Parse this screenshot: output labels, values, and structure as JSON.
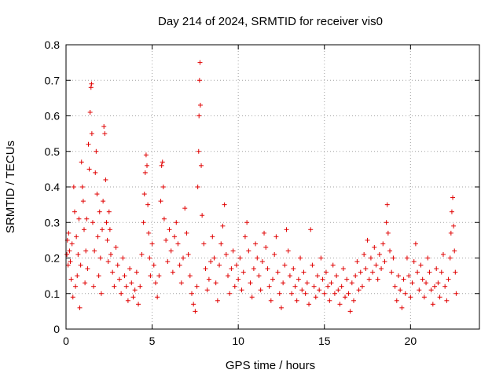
{
  "chart_data": {
    "type": "scatter",
    "title": "Day 214 of 2024, SRMTID for receiver vis0",
    "xlabel": "GPS time / hours",
    "ylabel": "SRMTID / TECUs",
    "xlim": [
      0,
      24
    ],
    "ylim": [
      0,
      0.8
    ],
    "xticks": [
      0,
      5,
      10,
      15,
      20
    ],
    "yticks": [
      0,
      0.1,
      0.2,
      0.3,
      0.4,
      0.5,
      0.6,
      0.7,
      0.8
    ],
    "grid": true,
    "marker": "+",
    "color": "#e00000",
    "series": [
      {
        "name": "SRMTID",
        "points": [
          [
            0.05,
            0.21
          ],
          [
            0.08,
            0.25
          ],
          [
            0.12,
            0.18
          ],
          [
            0.15,
            0.27
          ],
          [
            0.2,
            0.22
          ],
          [
            0.25,
            0.19
          ],
          [
            0.3,
            0.14
          ],
          [
            0.35,
            0.24
          ],
          [
            0.4,
            0.09
          ],
          [
            0.45,
            0.4
          ],
          [
            0.5,
            0.33
          ],
          [
            0.55,
            0.12
          ],
          [
            0.6,
            0.26
          ],
          [
            0.65,
            0.15
          ],
          [
            0.7,
            0.21
          ],
          [
            0.75,
            0.31
          ],
          [
            0.8,
            0.06
          ],
          [
            0.85,
            0.18
          ],
          [
            0.9,
            0.47
          ],
          [
            0.95,
            0.4
          ],
          [
            1.0,
            0.36
          ],
          [
            1.05,
            0.28
          ],
          [
            1.1,
            0.13
          ],
          [
            1.15,
            0.22
          ],
          [
            1.2,
            0.31
          ],
          [
            1.25,
            0.17
          ],
          [
            1.3,
            0.52
          ],
          [
            1.35,
            0.45
          ],
          [
            1.4,
            0.61
          ],
          [
            1.45,
            0.68
          ],
          [
            1.48,
            0.69
          ],
          [
            1.5,
            0.55
          ],
          [
            1.55,
            0.3
          ],
          [
            1.6,
            0.12
          ],
          [
            1.65,
            0.22
          ],
          [
            1.7,
            0.44
          ],
          [
            1.75,
            0.5
          ],
          [
            1.8,
            0.38
          ],
          [
            1.85,
            0.26
          ],
          [
            1.9,
            0.15
          ],
          [
            1.95,
            0.33
          ],
          [
            2.0,
            0.2
          ],
          [
            2.05,
            0.1
          ],
          [
            2.1,
            0.28
          ],
          [
            2.15,
            0.36
          ],
          [
            2.2,
            0.57
          ],
          [
            2.25,
            0.55
          ],
          [
            2.3,
            0.42
          ],
          [
            2.35,
            0.3
          ],
          [
            2.4,
            0.25
          ],
          [
            2.45,
            0.19
          ],
          [
            2.5,
            0.33
          ],
          [
            2.55,
            0.28
          ],
          [
            2.6,
            0.21
          ],
          [
            2.7,
            0.16
          ],
          [
            2.8,
            0.12
          ],
          [
            2.9,
            0.23
          ],
          [
            3.0,
            0.18
          ],
          [
            3.1,
            0.14
          ],
          [
            3.2,
            0.1
          ],
          [
            3.3,
            0.2
          ],
          [
            3.4,
            0.15
          ],
          [
            3.5,
            0.12
          ],
          [
            3.6,
            0.08
          ],
          [
            3.7,
            0.17
          ],
          [
            3.8,
            0.13
          ],
          [
            3.9,
            0.09
          ],
          [
            4.0,
            0.11
          ],
          [
            4.1,
            0.16
          ],
          [
            4.2,
            0.07
          ],
          [
            4.3,
            0.12
          ],
          [
            4.4,
            0.21
          ],
          [
            4.5,
            0.3
          ],
          [
            4.55,
            0.38
          ],
          [
            4.6,
            0.44
          ],
          [
            4.65,
            0.49
          ],
          [
            4.7,
            0.46
          ],
          [
            4.75,
            0.35
          ],
          [
            4.8,
            0.27
          ],
          [
            4.85,
            0.2
          ],
          [
            4.9,
            0.15
          ],
          [
            5.0,
            0.24
          ],
          [
            5.1,
            0.18
          ],
          [
            5.2,
            0.13
          ],
          [
            5.3,
            0.09
          ],
          [
            5.4,
            0.15
          ],
          [
            5.5,
            0.36
          ],
          [
            5.55,
            0.46
          ],
          [
            5.6,
            0.47
          ],
          [
            5.65,
            0.4
          ],
          [
            5.7,
            0.31
          ],
          [
            5.8,
            0.25
          ],
          [
            5.9,
            0.19
          ],
          [
            6.0,
            0.28
          ],
          [
            6.1,
            0.22
          ],
          [
            6.2,
            0.16
          ],
          [
            6.3,
            0.26
          ],
          [
            6.4,
            0.3
          ],
          [
            6.5,
            0.24
          ],
          [
            6.6,
            0.18
          ],
          [
            6.7,
            0.13
          ],
          [
            6.8,
            0.2
          ],
          [
            6.9,
            0.34
          ],
          [
            7.0,
            0.27
          ],
          [
            7.1,
            0.21
          ],
          [
            7.2,
            0.15
          ],
          [
            7.3,
            0.1
          ],
          [
            7.4,
            0.07
          ],
          [
            7.5,
            0.05
          ],
          [
            7.6,
            0.12
          ],
          [
            7.65,
            0.4
          ],
          [
            7.7,
            0.5
          ],
          [
            7.72,
            0.6
          ],
          [
            7.75,
            0.7
          ],
          [
            7.78,
            0.75
          ],
          [
            7.8,
            0.63
          ],
          [
            7.85,
            0.46
          ],
          [
            7.9,
            0.32
          ],
          [
            8.0,
            0.24
          ],
          [
            8.1,
            0.17
          ],
          [
            8.2,
            0.11
          ],
          [
            8.3,
            0.14
          ],
          [
            8.4,
            0.19
          ],
          [
            8.5,
            0.26
          ],
          [
            8.6,
            0.2
          ],
          [
            8.7,
            0.13
          ],
          [
            8.8,
            0.08
          ],
          [
            8.9,
            0.18
          ],
          [
            9.0,
            0.24
          ],
          [
            9.1,
            0.29
          ],
          [
            9.2,
            0.35
          ],
          [
            9.3,
            0.21
          ],
          [
            9.4,
            0.15
          ],
          [
            9.5,
            0.1
          ],
          [
            9.6,
            0.17
          ],
          [
            9.7,
            0.22
          ],
          [
            9.8,
            0.12
          ],
          [
            9.9,
            0.18
          ],
          [
            10.0,
            0.14
          ],
          [
            10.1,
            0.2
          ],
          [
            10.2,
            0.11
          ],
          [
            10.3,
            0.16
          ],
          [
            10.4,
            0.26
          ],
          [
            10.5,
            0.3
          ],
          [
            10.6,
            0.22
          ],
          [
            10.7,
            0.13
          ],
          [
            10.8,
            0.09
          ],
          [
            10.9,
            0.17
          ],
          [
            11.0,
            0.24
          ],
          [
            11.1,
            0.2
          ],
          [
            11.2,
            0.15
          ],
          [
            11.3,
            0.11
          ],
          [
            11.4,
            0.19
          ],
          [
            11.5,
            0.27
          ],
          [
            11.6,
            0.23
          ],
          [
            11.7,
            0.17
          ],
          [
            11.8,
            0.12
          ],
          [
            11.9,
            0.08
          ],
          [
            12.0,
            0.14
          ],
          [
            12.1,
            0.21
          ],
          [
            12.2,
            0.26
          ],
          [
            12.3,
            0.16
          ],
          [
            12.4,
            0.1
          ],
          [
            12.5,
            0.06
          ],
          [
            12.6,
            0.13
          ],
          [
            12.7,
            0.18
          ],
          [
            12.8,
            0.28
          ],
          [
            12.9,
            0.22
          ],
          [
            13.0,
            0.15
          ],
          [
            13.1,
            0.1
          ],
          [
            13.2,
            0.17
          ],
          [
            13.3,
            0.12
          ],
          [
            13.4,
            0.08
          ],
          [
            13.5,
            0.14
          ],
          [
            13.6,
            0.2
          ],
          [
            13.7,
            0.11
          ],
          [
            13.8,
            0.16
          ],
          [
            13.9,
            0.1
          ],
          [
            14.0,
            0.13
          ],
          [
            14.1,
            0.07
          ],
          [
            14.2,
            0.28
          ],
          [
            14.3,
            0.18
          ],
          [
            14.4,
            0.12
          ],
          [
            14.5,
            0.09
          ],
          [
            14.6,
            0.15
          ],
          [
            14.7,
            0.11
          ],
          [
            14.8,
            0.2
          ],
          [
            14.9,
            0.14
          ],
          [
            15.0,
            0.1
          ],
          [
            15.1,
            0.16
          ],
          [
            15.2,
            0.12
          ],
          [
            15.3,
            0.08
          ],
          [
            15.4,
            0.13
          ],
          [
            15.5,
            0.18
          ],
          [
            15.6,
            0.1
          ],
          [
            15.7,
            0.15
          ],
          [
            15.8,
            0.11
          ],
          [
            15.9,
            0.07
          ],
          [
            16.0,
            0.12
          ],
          [
            16.1,
            0.17
          ],
          [
            16.2,
            0.09
          ],
          [
            16.3,
            0.14
          ],
          [
            16.4,
            0.1
          ],
          [
            16.5,
            0.05
          ],
          [
            16.6,
            0.13
          ],
          [
            16.7,
            0.08
          ],
          [
            16.8,
            0.15
          ],
          [
            16.9,
            0.19
          ],
          [
            17.0,
            0.11
          ],
          [
            17.1,
            0.16
          ],
          [
            17.2,
            0.12
          ],
          [
            17.3,
            0.21
          ],
          [
            17.4,
            0.17
          ],
          [
            17.5,
            0.25
          ],
          [
            17.6,
            0.14
          ],
          [
            17.7,
            0.2
          ],
          [
            17.8,
            0.16
          ],
          [
            17.9,
            0.23
          ],
          [
            18.0,
            0.18
          ],
          [
            18.1,
            0.14
          ],
          [
            18.2,
            0.21
          ],
          [
            18.3,
            0.17
          ],
          [
            18.4,
            0.24
          ],
          [
            18.5,
            0.19
          ],
          [
            18.6,
            0.3
          ],
          [
            18.65,
            0.35
          ],
          [
            18.7,
            0.27
          ],
          [
            18.8,
            0.22
          ],
          [
            18.9,
            0.16
          ],
          [
            19.0,
            0.2
          ],
          [
            19.1,
            0.12
          ],
          [
            19.2,
            0.08
          ],
          [
            19.3,
            0.15
          ],
          [
            19.4,
            0.11
          ],
          [
            19.5,
            0.06
          ],
          [
            19.6,
            0.14
          ],
          [
            19.7,
            0.1
          ],
          [
            19.8,
            0.2
          ],
          [
            19.9,
            0.15
          ],
          [
            20.0,
            0.09
          ],
          [
            20.1,
            0.13
          ],
          [
            20.2,
            0.19
          ],
          [
            20.3,
            0.24
          ],
          [
            20.4,
            0.16
          ],
          [
            20.5,
            0.11
          ],
          [
            20.6,
            0.18
          ],
          [
            20.7,
            0.14
          ],
          [
            20.8,
            0.09
          ],
          [
            20.9,
            0.13
          ],
          [
            21.0,
            0.2
          ],
          [
            21.1,
            0.16
          ],
          [
            21.2,
            0.11
          ],
          [
            21.3,
            0.07
          ],
          [
            21.4,
            0.12
          ],
          [
            21.5,
            0.17
          ],
          [
            21.6,
            0.13
          ],
          [
            21.7,
            0.09
          ],
          [
            21.8,
            0.16
          ],
          [
            21.9,
            0.21
          ],
          [
            22.0,
            0.12
          ],
          [
            22.1,
            0.08
          ],
          [
            22.2,
            0.14
          ],
          [
            22.3,
            0.2
          ],
          [
            22.35,
            0.27
          ],
          [
            22.4,
            0.33
          ],
          [
            22.45,
            0.37
          ],
          [
            22.5,
            0.29
          ],
          [
            22.55,
            0.22
          ],
          [
            22.6,
            0.16
          ],
          [
            22.65,
            0.1
          ]
        ]
      }
    ]
  }
}
